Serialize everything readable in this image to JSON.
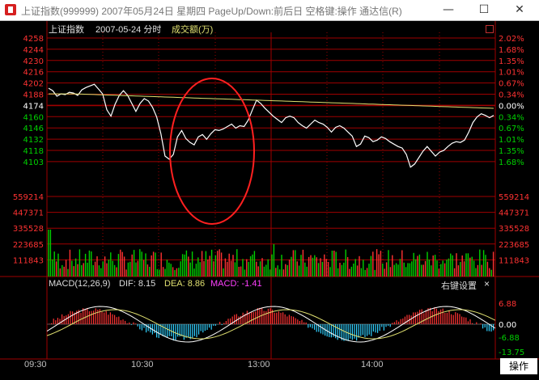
{
  "window": {
    "title": "上证指数(999999) 2007年05月24日 星期四 PageUp/Down:前后日 空格键:操作 通达信(R)",
    "minimize_glyph": "—",
    "maximize_glyph": "☐",
    "close_glyph": "✕"
  },
  "chart_header": {
    "index_name": "上证指数",
    "date_label": "2007-05-24 分时",
    "volume_label": "成交额(万)"
  },
  "price_axis": {
    "left_labels": [
      "4258",
      "4244",
      "4230",
      "4216",
      "4202",
      "4188",
      "4174",
      "4160",
      "4146",
      "4132",
      "4118",
      "4103"
    ],
    "right_labels": [
      "2.02%",
      "1.68%",
      "1.35%",
      "1.01%",
      "0.67%",
      "0.34%",
      "0.00%",
      "0.34%",
      "0.67%",
      "1.01%",
      "1.35%",
      "1.68%"
    ],
    "reference_index": 6
  },
  "volume_axis": {
    "labels": [
      "559214",
      "447371",
      "335528",
      "223685",
      "111843"
    ]
  },
  "macd": {
    "title": "MACD(12,26,9)",
    "dif_label": "DIF: 8.15",
    "dea_label": "DEA: 8.86",
    "macd_label": "MACD: -1.41",
    "right_click_label": "右键设置",
    "close_glyph": "×",
    "axis_labels": [
      "6.88",
      "0.00",
      "-6.88",
      "-13.75"
    ]
  },
  "time_axis": {
    "labels": [
      "09:30",
      "10:30",
      "13:00",
      "14:00"
    ]
  },
  "operate_button": "操作",
  "colors": {
    "up": "#ff3232",
    "down": "#00d000",
    "grid": "#a00000",
    "price_line": "#ffffff",
    "avg_line": "#e0e070",
    "macd_dea": "#e0e070",
    "macd_label": "#ff40ff",
    "ellipse": "#ff2020"
  },
  "chart_data": {
    "type": "line",
    "series": [
      {
        "name": "",
        "values": [
          4195,
          4192,
          4185,
          4188,
          4187,
          4190,
          4189,
          4186,
          4193,
          4196,
          4198,
          4200,
          4194,
          4188,
          4168,
          4160,
          4175,
          4186,
          4192,
          4186,
          4176,
          4166,
          4176,
          4182,
          4179,
          4171,
          4159,
          4138,
          4110,
          4106,
          4112,
          4134,
          4142,
          4132,
          4127,
          4124,
          4134,
          4137,
          4131,
          4138,
          4143,
          4142,
          4144,
          4147,
          4150,
          4145,
          4148,
          4147,
          4155,
          4168,
          4180,
          4176,
          4170,
          4165,
          4160,
          4156,
          4152,
          4158,
          4160,
          4158,
          4152,
          4148,
          4145,
          4150,
          4155,
          4152,
          4150,
          4146,
          4140,
          4146,
          4148,
          4145,
          4140,
          4135,
          4122,
          4125,
          4135,
          4133,
          4128,
          4130,
          4134,
          4132,
          4128,
          4125,
          4122,
          4120,
          4112,
          4096,
          4100,
          4108,
          4116,
          4122,
          4116,
          4110,
          4115,
          4117,
          4122,
          4126,
          4128,
          4127,
          4130,
          4140,
          4152,
          4159,
          4163,
          4161,
          4158,
          4161
        ],
        "description_free": true
      }
    ],
    "x_labels": [
      "09:30",
      "10:30",
      "13:00",
      "14:00"
    ],
    "y_range": [
      4103,
      4258
    ],
    "reference": 4174
  }
}
